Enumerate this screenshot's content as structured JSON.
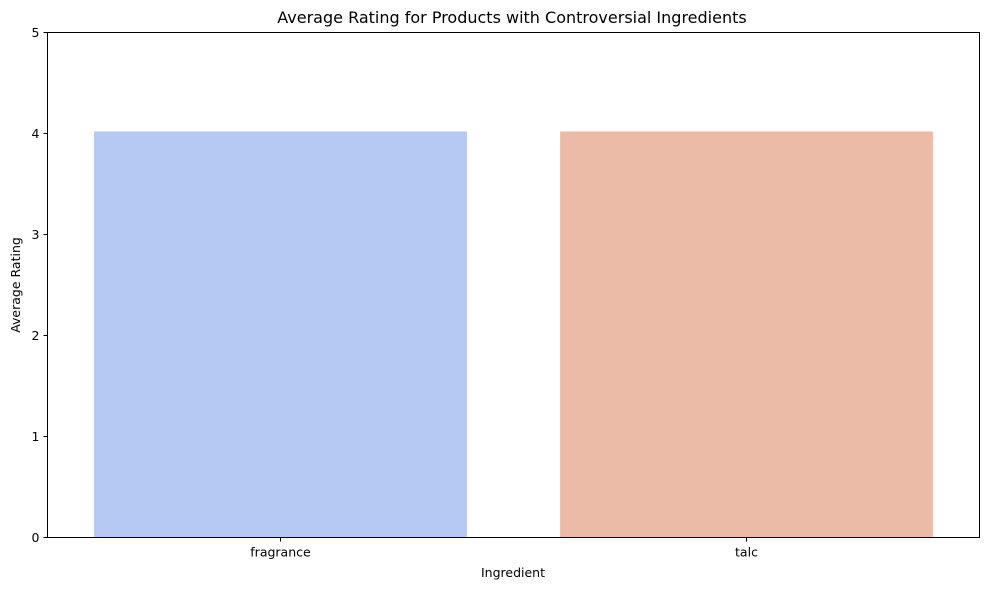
{
  "chart_data": {
    "type": "bar",
    "title": "Average Rating for Products with Controversial Ingredients",
    "xlabel": "Ingredient",
    "ylabel": "Average Rating",
    "categories": [
      "fragrance",
      "talc"
    ],
    "values": [
      4.02,
      4.02
    ],
    "colors": [
      "#b5c9f2",
      "#ebbba7"
    ],
    "ylim": [
      0,
      5
    ],
    "yticks": [
      0,
      1,
      2,
      3,
      4,
      5
    ],
    "ytick_labels": [
      "0",
      "1",
      "2",
      "3",
      "4",
      "5"
    ],
    "grid": false,
    "legend": "none"
  }
}
